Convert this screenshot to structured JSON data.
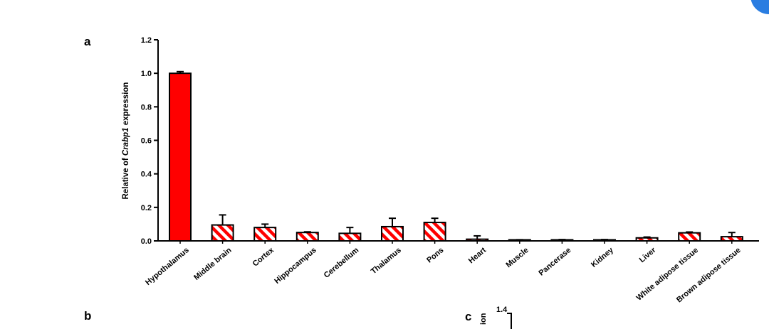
{
  "panels": {
    "a": "a",
    "b": "b",
    "c": "c"
  },
  "chart_data": [
    {
      "type": "bar",
      "panel": "a",
      "categories": [
        "Hypothalamus",
        "Middle brain",
        "Cortex",
        "Hippocampus",
        "Cerebellum",
        "Thalamus",
        "Pons",
        "Heart",
        "Muscle",
        "Pancerase",
        "Kidney",
        "Liver",
        "White adipose tissue",
        "Brown adipose tissue"
      ],
      "values": [
        1.0,
        0.095,
        0.08,
        0.05,
        0.045,
        0.085,
        0.11,
        0.01,
        0.005,
        0.005,
        0.005,
        0.018,
        0.048,
        0.025
      ],
      "errors": [
        0.01,
        0.06,
        0.02,
        0.004,
        0.035,
        0.05,
        0.025,
        0.02,
        0.002,
        0.003,
        0.003,
        0.005,
        0.005,
        0.025
      ],
      "fill": [
        "solid",
        "hatched",
        "hatched",
        "hatched",
        "hatched",
        "hatched",
        "hatched",
        "hatched",
        "hatched",
        "hatched",
        "hatched",
        "hatched",
        "hatched",
        "hatched"
      ],
      "ylabel_pre": "Relative of ",
      "ylabel_gene": "Crabp1",
      "ylabel_post": " expression",
      "yticks": [
        "0.0",
        "0.2",
        "0.4",
        "0.6",
        "0.8",
        "1.0",
        "1.2"
      ],
      "ylim": [
        0,
        1.2
      ],
      "bar_color": "#ff0000",
      "grid": false
    },
    {
      "type": "bar",
      "panel": "c",
      "ylabel": "ion",
      "yticks": [
        "1.4"
      ]
    }
  ]
}
